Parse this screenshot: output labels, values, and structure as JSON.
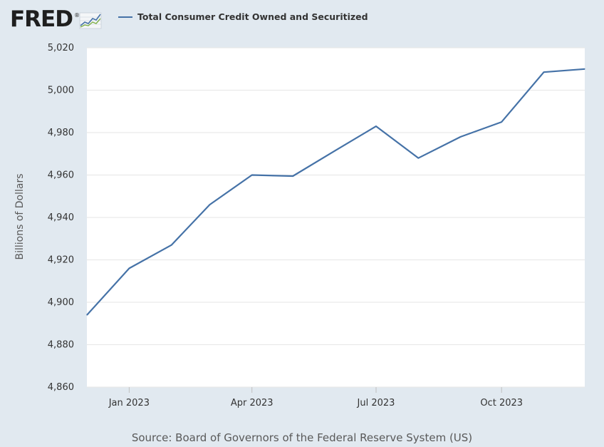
{
  "logo": {
    "text": "FRED",
    "trademark": "®"
  },
  "legend": {
    "label": "Total Consumer Credit Owned and Securitized"
  },
  "source": "Source: Board of Governors of the Federal Reserve System (US)",
  "colors": {
    "background": "#e1e9f0",
    "plot_background": "#ffffff",
    "series": "#4572a7",
    "grid": "#e6e6e6"
  },
  "chart_data": {
    "type": "line",
    "title": "",
    "xlabel": "",
    "ylabel": "Billions of Dollars",
    "ylim": [
      4860,
      5020
    ],
    "yticks": [
      4860,
      4880,
      4900,
      4920,
      4940,
      4960,
      4980,
      5000,
      5020
    ],
    "ytick_labels": [
      "4,860",
      "4,880",
      "4,900",
      "4,920",
      "4,940",
      "4,960",
      "4,980",
      "5,000",
      "5,020"
    ],
    "xlim": [
      "2022-12-01",
      "2023-12-01"
    ],
    "xticks": [
      "2023-01-01",
      "2023-04-01",
      "2023-07-01",
      "2023-10-01"
    ],
    "xtick_labels": [
      "Jan 2023",
      "Apr 2023",
      "Jul 2023",
      "Oct 2023"
    ],
    "grid": true,
    "legend_position": "top-left",
    "series": [
      {
        "name": "Total Consumer Credit Owned and Securitized",
        "x": [
          "2022-12-01",
          "2023-01-01",
          "2023-02-01",
          "2023-03-01",
          "2023-04-01",
          "2023-05-01",
          "2023-06-01",
          "2023-07-01",
          "2023-08-01",
          "2023-09-01",
          "2023-10-01",
          "2023-11-01",
          "2023-12-01"
        ],
        "values": [
          4894,
          4916,
          4927,
          4946,
          4960,
          4959.5,
          4971.5,
          4983,
          4968,
          4978,
          4985,
          5008.5,
          5010
        ]
      }
    ]
  }
}
